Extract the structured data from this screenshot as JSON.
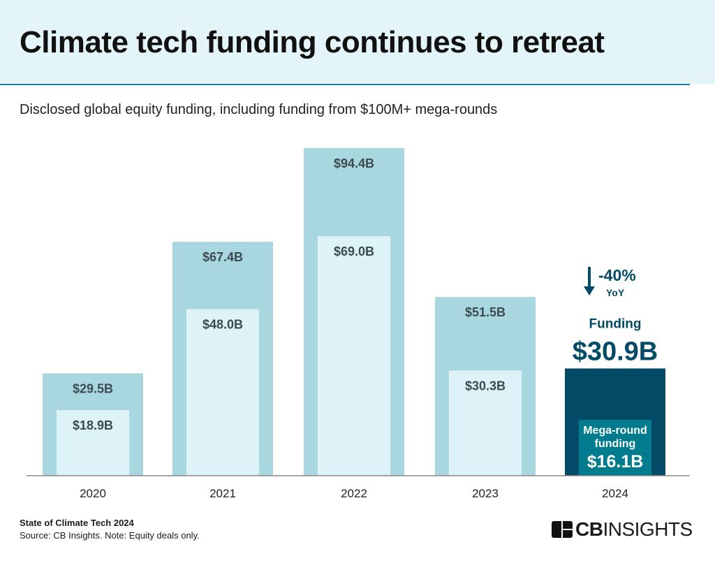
{
  "header": {
    "title": "Climate tech funding continues to retreat",
    "subtitle": "Disclosed global equity funding, including funding from $100M+ mega-rounds"
  },
  "footer": {
    "line1": "State of Climate Tech 2024",
    "line2": "Source: CB Insights. Note: Equity deals only.",
    "logo": "CBINSIGHTS"
  },
  "colors": {
    "total": "#a9d7df",
    "mega": "#ddf3f7",
    "total_highlight": "#034a66",
    "mega_highlight": "#017b8e",
    "label": "#3d4a50"
  },
  "chart_data": {
    "type": "bar",
    "categories": [
      "2020",
      "2021",
      "2022",
      "2023",
      "2024"
    ],
    "series": [
      {
        "values": [
          29.5,
          67.4,
          94.4,
          51.5,
          30.9
        ],
        "labels": [
          "$29.5B",
          "$67.4B",
          "$94.4B",
          "$51.5B",
          "$30.9B"
        ]
      },
      {
        "values": [
          18.9,
          48.0,
          69.0,
          30.3,
          16.1
        ],
        "labels": [
          "$18.9B",
          "$48.0B",
          "$69.0B",
          "$30.3B",
          "$16.1B"
        ]
      }
    ],
    "highlight": {
      "category": "2024",
      "total_title": "Funding",
      "mega_title_1": "Mega-round",
      "mega_title_2": "funding",
      "change": "-40%",
      "change_label": "YoY"
    },
    "ylim": [
      0,
      94.4
    ]
  }
}
